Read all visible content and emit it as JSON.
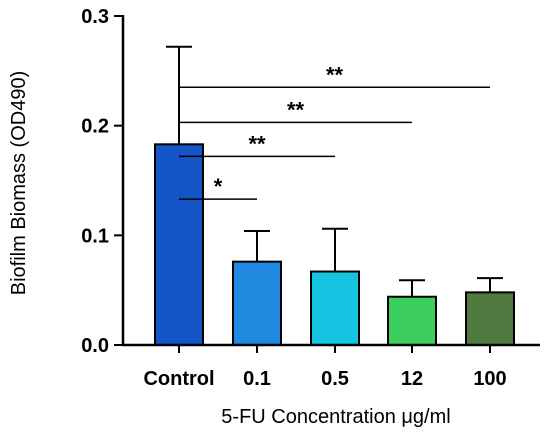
{
  "chart_data": {
    "type": "bar",
    "xlabel": "5-FU Concentration μg/ml",
    "ylabel": "Biofilm Biomass (OD490)",
    "ylim": [
      0,
      0.3
    ],
    "yticks": [
      0.0,
      0.1,
      0.2,
      0.3
    ],
    "ytick_labels": [
      "0.0",
      "0.1",
      "0.2",
      "0.3"
    ],
    "categories": [
      "Control",
      "0.1",
      "0.5",
      "12",
      "100"
    ],
    "values": [
      0.183,
      0.076,
      0.067,
      0.044,
      0.048
    ],
    "errors": [
      0.089,
      0.028,
      0.039,
      0.015,
      0.013
    ],
    "bar_colors": [
      "#1455c8",
      "#1f8ae0",
      "#14c4e0",
      "#3dcf5e",
      "#4f7a40"
    ],
    "significance": [
      {
        "label": "*",
        "from": "Control",
        "to": "0.1",
        "y": 0.133
      },
      {
        "label": "**",
        "from": "Control",
        "to": "0.5",
        "y": 0.172
      },
      {
        "label": "**",
        "from": "Control",
        "to": "12",
        "y": 0.203
      },
      {
        "label": "**",
        "from": "Control",
        "to": "100",
        "y": 0.235
      }
    ],
    "grid": false,
    "legend": "none"
  }
}
